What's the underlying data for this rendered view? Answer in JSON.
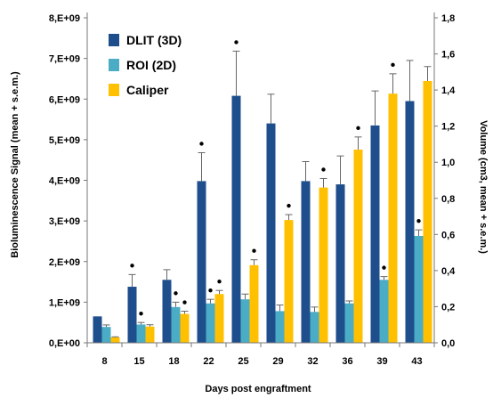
{
  "chart_data": {
    "type": "bar",
    "title": "",
    "xlabel": "Days post engraftment",
    "ylabel": "Bioluminescence Signal  (mean + s.e.m.)",
    "y2label": "Volume (cm3, mean + s.e.m.)",
    "categories": [
      "8",
      "15",
      "18",
      "22",
      "25",
      "29",
      "32",
      "36",
      "39",
      "43"
    ],
    "ylim": [
      0,
      8000000000
    ],
    "y2lim": [
      0,
      1.8
    ],
    "yticks": [
      "0,E+00",
      "1,E+09",
      "2,E+09",
      "3,E+09",
      "4,E+09",
      "5,E+09",
      "6,E+09",
      "7,E+09",
      "8,E+09"
    ],
    "y2ticks": [
      "0,0",
      "0,2",
      "0,4",
      "0,6",
      "0,8",
      "1,0",
      "1,2",
      "1,4",
      "1,6",
      "1,8"
    ],
    "grid": false,
    "legend_position": "top-left",
    "series": [
      {
        "name": "DLIT (3D)",
        "axis": "left",
        "color": "#1F4E8C",
        "values": [
          650000000,
          1380000000,
          1550000000,
          3980000000,
          6080000000,
          5400000000,
          3980000000,
          3900000000,
          5350000000,
          5950000000
        ],
        "errors": [
          0,
          300000000,
          250000000,
          700000000,
          1100000000,
          720000000,
          480000000,
          700000000,
          850000000,
          1000000000
        ],
        "significant": [
          false,
          true,
          false,
          true,
          true,
          false,
          false,
          false,
          false,
          false
        ]
      },
      {
        "name": "ROI (2D)",
        "axis": "left",
        "color": "#4BACC6",
        "values": [
          390000000,
          450000000,
          880000000,
          970000000,
          1070000000,
          780000000,
          760000000,
          970000000,
          1550000000,
          2630000000
        ],
        "errors": [
          50000000,
          50000000,
          120000000,
          100000000,
          130000000,
          150000000,
          120000000,
          60000000,
          80000000,
          150000000
        ],
        "significant": [
          false,
          true,
          true,
          true,
          false,
          false,
          false,
          false,
          true,
          true
        ]
      },
      {
        "name": "Caliper",
        "axis": "right",
        "color": "#FFC000",
        "values": [
          0.03,
          0.09,
          0.16,
          0.27,
          0.43,
          0.68,
          0.86,
          1.07,
          1.38,
          1.45
        ],
        "errors": [
          0.003,
          0.01,
          0.015,
          0.02,
          0.03,
          0.03,
          0.05,
          0.07,
          0.11,
          0.08
        ],
        "significant": [
          false,
          false,
          true,
          true,
          true,
          true,
          true,
          true,
          true,
          false
        ]
      }
    ]
  }
}
